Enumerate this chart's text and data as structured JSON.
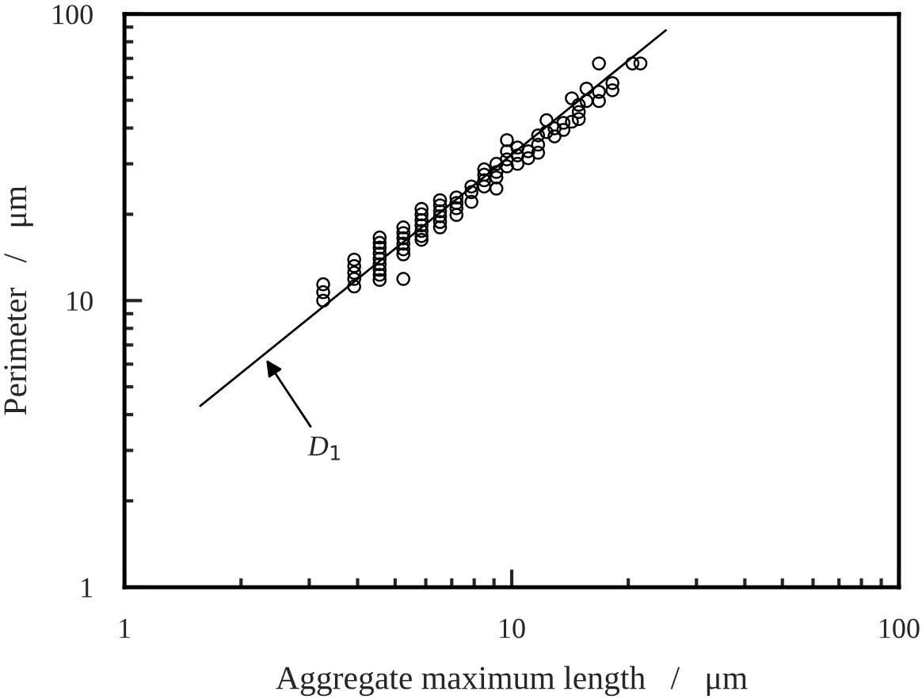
{
  "chart_data": {
    "type": "scatter",
    "xlabel": "Aggregate maximum length   /   μm",
    "ylabel": "Perimeter   /   μm",
    "log": "xy",
    "xlim": [
      1,
      100
    ],
    "ylim": [
      1,
      100
    ],
    "xticks": [
      1,
      10,
      100
    ],
    "yticks": [
      1,
      10,
      100
    ],
    "grid": false,
    "legend": false,
    "series": [
      {
        "color": "#000000",
        "marker": "circle",
        "x": [
          3.26,
          3.26,
          3.26,
          3.92,
          3.92,
          3.92,
          3.92,
          3.92,
          4.56,
          4.56,
          4.56,
          4.56,
          4.56,
          4.56,
          4.56,
          4.56,
          4.56,
          5.25,
          5.25,
          5.25,
          5.25,
          5.25,
          5.25,
          5.25,
          5.85,
          5.85,
          5.85,
          5.85,
          5.85,
          5.85,
          5.85,
          6.53,
          6.53,
          6.53,
          6.53,
          6.53,
          6.53,
          7.2,
          7.2,
          7.2,
          7.2,
          7.87,
          7.87,
          7.87,
          8.49,
          8.49,
          8.49,
          8.49,
          9.13,
          9.13,
          9.13,
          9.13,
          9.72,
          9.72,
          9.72,
          9.72,
          10.35,
          10.35,
          10.35,
          11.03,
          11.03,
          11.7,
          11.7,
          11.7,
          12.3,
          12.3,
          12.9,
          12.9,
          13.6,
          13.6,
          14.3,
          14.3,
          14.9,
          14.9,
          14.9,
          15.6,
          15.6,
          16.8,
          16.8,
          16.8,
          18.2,
          18.2,
          20.5,
          21.5
        ],
        "values": [
          11.4,
          10.7,
          10.0,
          13.9,
          13.2,
          12.5,
          11.9,
          11.2,
          16.6,
          15.9,
          15.3,
          14.6,
          14.0,
          13.4,
          12.8,
          12.3,
          11.8,
          18.0,
          17.2,
          16.5,
          15.8,
          15.1,
          14.5,
          11.9,
          20.9,
          20.0,
          19.1,
          18.3,
          17.5,
          16.8,
          16.3,
          22.4,
          21.5,
          20.5,
          19.7,
          18.8,
          18.0,
          22.9,
          21.9,
          21.0,
          19.9,
          25.0,
          23.9,
          22.1,
          28.7,
          27.5,
          26.3,
          25.0,
          30.0,
          28.1,
          26.9,
          24.6,
          36.3,
          33.2,
          31.1,
          29.4,
          34.2,
          32.1,
          30.0,
          33.2,
          31.4,
          37.7,
          35.0,
          32.8,
          42.6,
          38.7,
          39.9,
          37.4,
          41.7,
          39.4,
          50.8,
          42.1,
          48.2,
          45.5,
          43.0,
          54.9,
          49.7,
          67.2,
          53.5,
          49.7,
          57.4,
          54.2,
          67.2,
          67.2
        ]
      },
      {
        "type": "line",
        "color": "#000000",
        "line_style": "solid",
        "x": [
          1.57,
          25.0
        ],
        "values": [
          4.29,
          87.7
        ]
      }
    ],
    "annotations": [
      {
        "text": "D$_{1}$",
        "x": 2.29,
        "y": 6.4
      }
    ]
  }
}
